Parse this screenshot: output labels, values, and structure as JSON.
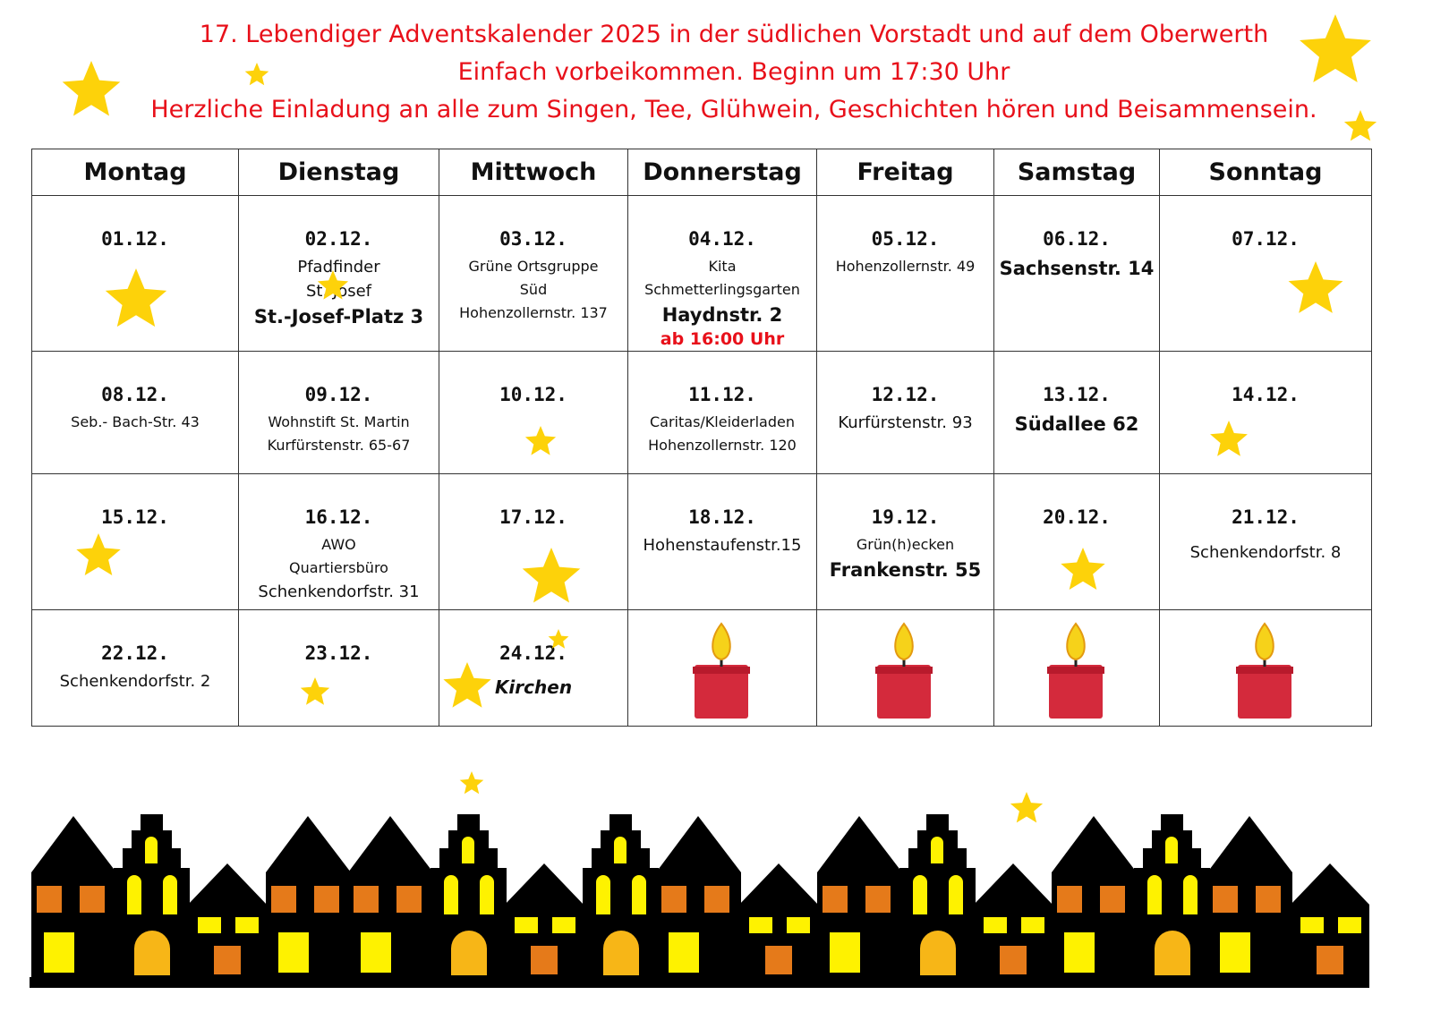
{
  "header": {
    "lines": [
      "17. Lebendiger Adventskalender 2025 in der südlichen Vorstadt und auf dem Oberwerth",
      "Einfach vorbeikommen. Beginn um 17:30 Uhr",
      "Herzliche Einladung an alle zum Singen, Tee, Glühwein, Geschichten hören und Beisammensein."
    ]
  },
  "calendar": {
    "weekdays": [
      "Montag",
      "Dienstag",
      "Mittwoch",
      "Donnerstag",
      "Freitag",
      "Samstag",
      "Sonntag"
    ],
    "weeks": [
      [
        {
          "date": "01.12."
        },
        {
          "date": "02.12.",
          "lines": [
            "Pfadfinder",
            "St. Josef",
            "St.-Josef-Platz 3"
          ]
        },
        {
          "date": "03.12.",
          "lines": [
            "Grüne Ortsgruppe",
            "Süd",
            "Hohenzollernstr. 137"
          ]
        },
        {
          "date": "04.12.",
          "lines": [
            "Kita",
            "Schmetterlingsgarten",
            "Haydnstr. 2",
            "ab 16:00 Uhr"
          ]
        },
        {
          "date": "05.12.",
          "lines": [
            "Hohenzollernstr. 49"
          ]
        },
        {
          "date": "06.12.",
          "lines": [
            "Sachsenstr. 14"
          ]
        },
        {
          "date": "07.12."
        }
      ],
      [
        {
          "date": "08.12.",
          "lines": [
            "Seb.- Bach-Str. 43"
          ]
        },
        {
          "date": "09.12.",
          "lines": [
            "Wohnstift St. Martin",
            "Kurfürstenstr. 65-67"
          ]
        },
        {
          "date": "10.12."
        },
        {
          "date": "11.12.",
          "lines": [
            "Caritas/Kleiderladen",
            "Hohenzollernstr. 120"
          ]
        },
        {
          "date": "12.12.",
          "lines": [
            "Kurfürstenstr. 93"
          ]
        },
        {
          "date": "13.12.",
          "lines": [
            "Südallee 62"
          ]
        },
        {
          "date": "14.12."
        }
      ],
      [
        {
          "date": "15.12."
        },
        {
          "date": "16.12.",
          "lines": [
            "AWO",
            "Quartiersbüro",
            "Schenkendorfstr. 31"
          ]
        },
        {
          "date": "17.12."
        },
        {
          "date": "18.12.",
          "lines": [
            "Hohenstaufenstr.15"
          ]
        },
        {
          "date": "19.12.",
          "lines": [
            "Grün(h)ecken",
            "Frankenstr. 55"
          ]
        },
        {
          "date": "20.12."
        },
        {
          "date": "21.12.",
          "lines": [
            "Schenkendorfstr. 8"
          ]
        }
      ],
      [
        {
          "date": "22.12.",
          "lines": [
            "Schenkendorfstr. 2"
          ]
        },
        {
          "date": "23.12."
        },
        {
          "date": "24.12.",
          "lines": [
            "Kirchen"
          ]
        }
      ]
    ]
  }
}
